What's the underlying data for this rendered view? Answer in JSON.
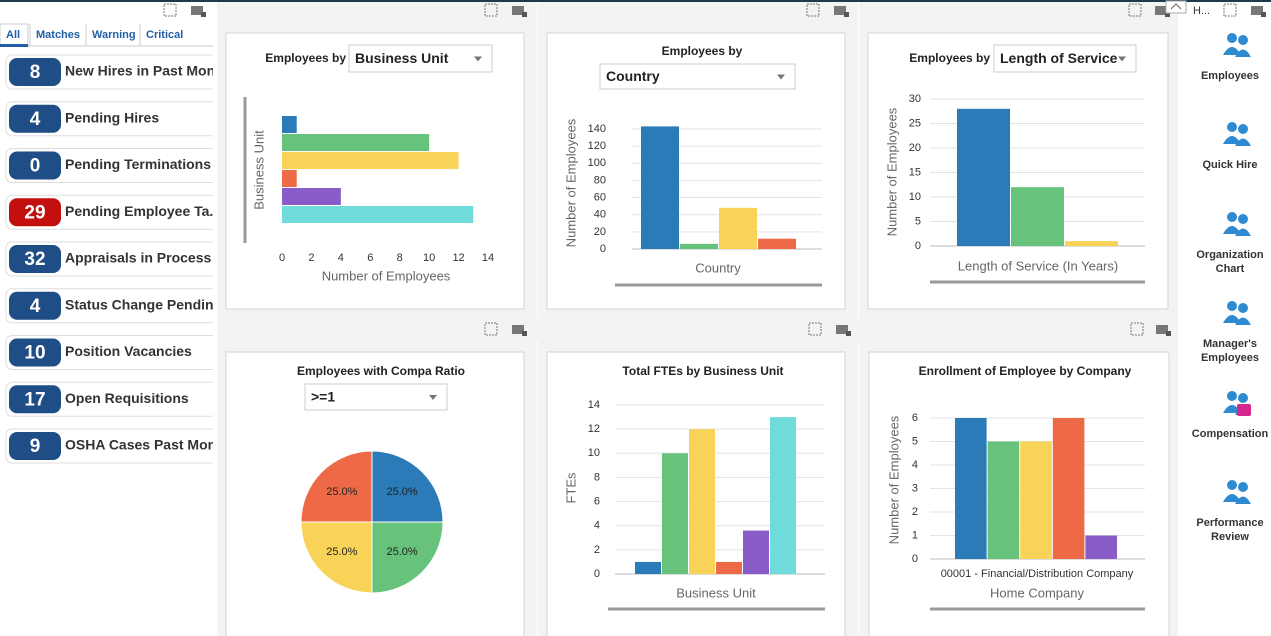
{
  "tabs": [
    "All",
    "Matches",
    "Warning",
    "Critical"
  ],
  "kpis": [
    {
      "value": 8,
      "label": "New Hires in Past Month",
      "color": "#1f4d86"
    },
    {
      "value": 4,
      "label": "Pending Hires",
      "color": "#1f4d86"
    },
    {
      "value": 0,
      "label": "Pending Terminations",
      "color": "#1f4d86"
    },
    {
      "value": 29,
      "label": "Pending Employee Ta...",
      "color": "#c40f0f"
    },
    {
      "value": 32,
      "label": "Appraisals in Process",
      "color": "#1f4d86"
    },
    {
      "value": 4,
      "label": "Status Change Pending",
      "color": "#1f4d86"
    },
    {
      "value": 10,
      "label": "Position Vacancies",
      "color": "#1f4d86"
    },
    {
      "value": 17,
      "label": "Open Requisitions",
      "color": "#1f4d86"
    },
    {
      "value": 9,
      "label": "OSHA Cases Past Month",
      "color": "#1f4d86"
    }
  ],
  "nav": {
    "header": "H...",
    "items": [
      "Employees",
      "Quick Hire",
      "Organization Chart",
      "Manager's Employees",
      "Compensation",
      "Performance Review"
    ]
  },
  "chart_data": [
    {
      "type": "barh",
      "title": "Employees by",
      "selector": "Business Unit",
      "xlabel": "Number of Employees",
      "ylabel": "Business Unit",
      "categories": [
        null,
        null,
        null,
        null,
        null,
        null
      ],
      "values": [
        1,
        10,
        12,
        1,
        4,
        13
      ],
      "colors": [
        "#2a7bb8",
        "#67c27c",
        "#f8d358",
        "#ee6946",
        "#8a5cc9",
        "#6fdbdb"
      ],
      "xlim": [
        0,
        14
      ],
      "xticks": [
        0,
        2,
        4,
        6,
        8,
        10,
        12,
        14
      ],
      "grid": false
    },
    {
      "type": "bar",
      "title": "Employees by",
      "selector": "Country",
      "xlabel": "Country",
      "ylabel": "Number of Employees",
      "categories": [
        null,
        null,
        null,
        null
      ],
      "values": [
        143,
        6,
        48,
        12
      ],
      "colors": [
        "#2a7bb8",
        "#67c27c",
        "#f8d358",
        "#ee6946"
      ],
      "ylim": [
        0,
        150
      ],
      "yticks": [
        0,
        20,
        40,
        60,
        80,
        100,
        120,
        140
      ],
      "grid": true
    },
    {
      "type": "bar",
      "title": "Employees by",
      "selector": "Length of Service",
      "xlabel": "Length of Service (In Years)",
      "ylabel": "Number of Employees",
      "categories": [
        null,
        null,
        null
      ],
      "values": [
        28,
        12,
        1
      ],
      "colors": [
        "#2a7bb8",
        "#67c27c",
        "#f8d358"
      ],
      "ylim": [
        0,
        30
      ],
      "yticks": [
        0,
        5,
        10,
        15,
        20,
        25,
        30
      ],
      "grid": true
    },
    {
      "type": "pie",
      "title": "Employees with Compa Ratio",
      "selector": ">=1",
      "categories": [
        null,
        null,
        null,
        null
      ],
      "values": [
        25,
        25,
        25,
        25
      ],
      "value_labels": [
        "25.0%",
        "25.0%",
        "25.0%",
        "25.0%"
      ],
      "colors": [
        "#2a7bb8",
        "#67c27c",
        "#f8d358",
        "#ee6946"
      ]
    },
    {
      "type": "bar",
      "title": "Total FTEs by Business Unit",
      "xlabel": "Business Unit",
      "ylabel": "FTEs",
      "categories": [
        null,
        null,
        null,
        null,
        null,
        null
      ],
      "values": [
        1,
        10,
        12,
        1,
        3.6,
        13
      ],
      "colors": [
        "#2a7bb8",
        "#67c27c",
        "#f8d358",
        "#ee6946",
        "#8a5cc9",
        "#6fdbdb"
      ],
      "ylim": [
        0,
        14
      ],
      "yticks": [
        0,
        2,
        4,
        6,
        8,
        10,
        12,
        14
      ],
      "grid": true
    },
    {
      "type": "bar",
      "title": "Enrollment of Employee by Company",
      "xlabel": "Home Company",
      "ylabel": "Number of Employees",
      "group_label": "00001 - Financial/Distribution Company",
      "categories": [
        null,
        null,
        null,
        null,
        null
      ],
      "values": [
        6,
        5,
        5,
        6,
        1
      ],
      "colors": [
        "#2a7bb8",
        "#67c27c",
        "#f8d358",
        "#ee6946",
        "#8a5cc9"
      ],
      "ylim": [
        0,
        6
      ],
      "yticks": [
        0,
        1,
        2,
        3,
        4,
        5,
        6
      ],
      "grid": true
    }
  ]
}
